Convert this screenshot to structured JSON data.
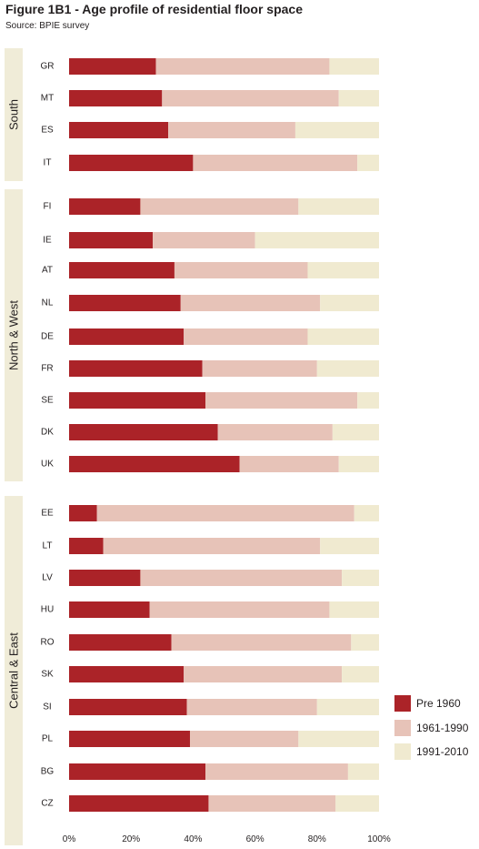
{
  "figure": {
    "title": "Figure 1B1 -  Age profile of residential floor space",
    "source": "Source: BPIE survey"
  },
  "colors": {
    "pre_1960": "#ab2328",
    "1961_1990": "#e7c3b8",
    "1991_2010": "#f0ead0",
    "group_band": "#f0ecd8"
  },
  "chart_data": {
    "type": "bar",
    "orientation": "horizontal",
    "stacked": true,
    "title": "Figure 1B1 -  Age profile of residential floor space",
    "xlim": [
      0,
      100
    ],
    "x_ticks": [
      "0%",
      "20%",
      "40%",
      "60%",
      "80%",
      "100%"
    ],
    "groups": [
      {
        "name": "South",
        "categories": [
          "GR",
          "MT",
          "ES",
          "IT"
        ]
      },
      {
        "name": "North & West",
        "categories": [
          "FI",
          "IE",
          "AT",
          "NL",
          "DE",
          "FR",
          "SE",
          "DK",
          "UK"
        ]
      },
      {
        "name": "Central & East",
        "categories": [
          "EE",
          "LT",
          "LV",
          "HU",
          "RO",
          "SK",
          "SI",
          "PL",
          "BG",
          "CZ"
        ]
      }
    ],
    "categories": [
      "GR",
      "MT",
      "ES",
      "IT",
      "FI",
      "IE",
      "AT",
      "NL",
      "DE",
      "FR",
      "SE",
      "DK",
      "UK",
      "EE",
      "LT",
      "LV",
      "HU",
      "RO",
      "SK",
      "SI",
      "PL",
      "BG",
      "CZ"
    ],
    "series": [
      {
        "name": "Pre 1960",
        "values": [
          28,
          30,
          32,
          40,
          23,
          27,
          34,
          36,
          37,
          43,
          44,
          48,
          55,
          9,
          11,
          23,
          26,
          33,
          37,
          38,
          39,
          44,
          45
        ]
      },
      {
        "name": "1961-1990",
        "values": [
          56,
          57,
          41,
          53,
          51,
          33,
          43,
          45,
          40,
          37,
          49,
          37,
          32,
          83,
          70,
          65,
          58,
          58,
          51,
          42,
          35,
          46,
          41
        ]
      },
      {
        "name": "1991-2010",
        "values": [
          16,
          13,
          27,
          7,
          26,
          40,
          23,
          19,
          23,
          20,
          7,
          15,
          13,
          8,
          19,
          12,
          16,
          9,
          12,
          20,
          26,
          10,
          14
        ]
      }
    ],
    "legend_position": "bottom-right"
  }
}
